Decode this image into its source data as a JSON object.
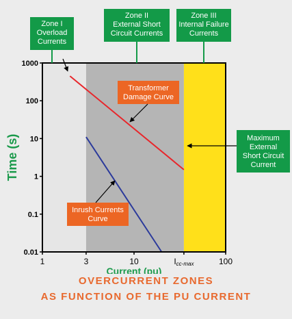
{
  "chart_data": {
    "type": "line",
    "xscale": "log",
    "yscale": "log",
    "xlim": [
      1,
      100
    ],
    "ylim": [
      0.01,
      1000
    ],
    "xlabel": "Current (pu)",
    "ylabel": "Time (s)",
    "x_ticks": [
      {
        "value": 1,
        "label": "1"
      },
      {
        "value": 3,
        "label": "3"
      },
      {
        "value": 10,
        "label": "10"
      },
      {
        "value": 35,
        "label": "I",
        "sub": "cc-max"
      },
      {
        "value": 100,
        "label": "100"
      }
    ],
    "y_ticks": [
      {
        "value": 1000,
        "label": "1000"
      },
      {
        "value": 100,
        "label": "100"
      },
      {
        "value": 10,
        "label": "10"
      },
      {
        "value": 1,
        "label": "1"
      },
      {
        "value": 0.1,
        "label": "0.1"
      },
      {
        "value": 0.01,
        "label": "0.01"
      }
    ],
    "zones": [
      {
        "from": 1,
        "to": 3,
        "color": "#e6e6e6",
        "lines": [
          "Zone I",
          "Overload",
          "Currents"
        ]
      },
      {
        "from": 3,
        "to": 35,
        "color": "#b5b5b5",
        "lines": [
          "Zone II",
          "External Short",
          "Circuit Currents"
        ]
      },
      {
        "from": 35,
        "to": 100,
        "color": "#ffe01a",
        "lines": [
          "Zone III",
          "Internal Failure",
          "Currents"
        ]
      }
    ],
    "series": [
      {
        "name": "Transformer Damage Curve",
        "color": "#e8262b",
        "points": [
          [
            2,
            450
          ],
          [
            35,
            1.5
          ]
        ]
      },
      {
        "name": "Inrush Currents Curve",
        "color": "#2b3a9b",
        "points": [
          [
            3,
            11
          ],
          [
            20,
            0.01
          ]
        ]
      }
    ],
    "annotations": {
      "transformer": [
        "Transformer",
        "Damage Curve"
      ],
      "inrush": [
        "Inrush Currents",
        "Curve"
      ],
      "max_current": [
        "Maximum",
        "External",
        "Short Circuit",
        "Current"
      ]
    },
    "colors": {
      "box_green": "#139a48",
      "box_orange": "#ec6624",
      "axis_label_green": "#1b9a4b"
    }
  },
  "footer": {
    "line1": "OVERCURRENT ZONES",
    "line2": "AS FUNCTION OF THE PU CURRENT"
  }
}
